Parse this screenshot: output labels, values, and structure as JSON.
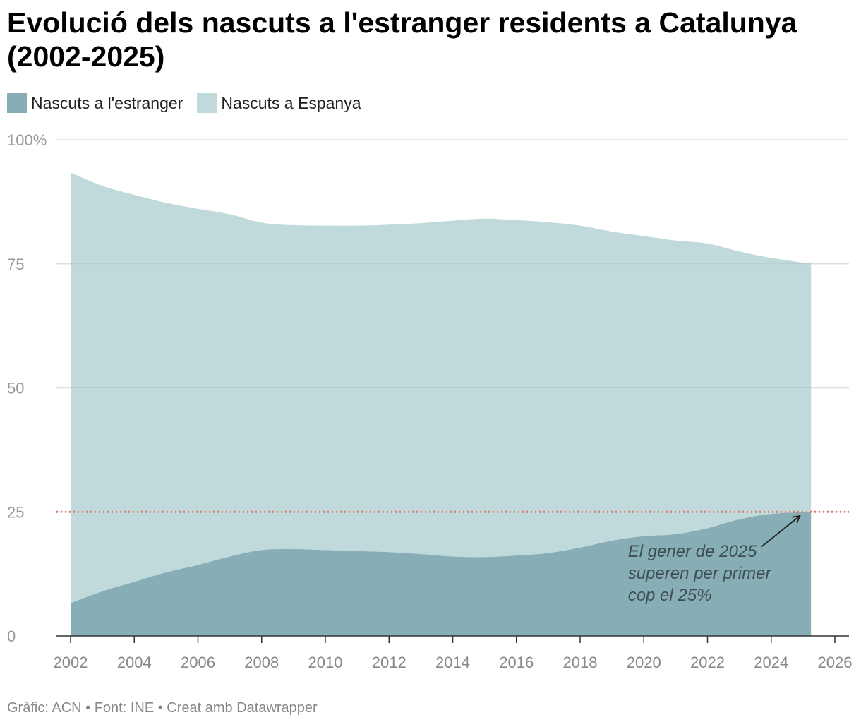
{
  "title": "Evolució dels nascuts a l'estranger residents a Catalunya (2002-2025)",
  "legend": [
    {
      "label": "Nascuts a l'estranger",
      "color": "#87aeb6"
    },
    {
      "label": "Nascuts a Espanya",
      "color": "#c0d9da"
    }
  ],
  "footer": {
    "text": "Gràfic: ACN • Font: INE • Creat amb Datawrapper"
  },
  "chart_data": {
    "type": "area",
    "stacked": true,
    "y_tick_labels": [
      "0",
      "25",
      "50",
      "75",
      "100%"
    ],
    "y_ticks": [
      0,
      25,
      50,
      75,
      100
    ],
    "ylim": [
      0,
      100
    ],
    "x_ticks": [
      2002,
      2004,
      2006,
      2008,
      2010,
      2012,
      2014,
      2016,
      2018,
      2020,
      2022,
      2024,
      2026
    ],
    "xlim": [
      2002,
      2026
    ],
    "grid": true,
    "legend_position": "top-left",
    "x": [
      2002,
      2003,
      2004,
      2005,
      2006,
      2007,
      2008,
      2009,
      2010,
      2011,
      2012,
      2013,
      2014,
      2015,
      2016,
      2017,
      2018,
      2019,
      2020,
      2021,
      2022,
      2023,
      2024,
      2025.25
    ],
    "series": [
      {
        "name": "Nascuts a l'estranger",
        "color": "#87aeb6",
        "values": [
          6.6,
          9.0,
          10.9,
          12.8,
          14.3,
          16.0,
          17.3,
          17.5,
          17.3,
          17.1,
          16.9,
          16.5,
          16.0,
          15.9,
          16.2,
          16.7,
          17.8,
          19.2,
          20.1,
          20.5,
          21.7,
          23.5,
          24.6,
          25.0
        ]
      },
      {
        "name": "Nascuts a Espanya",
        "color": "#c0d9da",
        "values": [
          86.8,
          81.7,
          78.0,
          74.5,
          71.8,
          69.0,
          66.0,
          65.3,
          65.4,
          65.6,
          66.0,
          66.7,
          67.7,
          68.2,
          67.6,
          66.7,
          64.9,
          62.3,
          60.5,
          59.2,
          57.4,
          54.0,
          51.6,
          50.0
        ]
      }
    ],
    "reference_line": {
      "y": 25,
      "color": "#e07b70",
      "style": "dotted"
    },
    "annotation": {
      "lines": [
        "El gener de 2025",
        "superen per primer",
        "cop el 25%"
      ],
      "x": 2019.5,
      "y": 15.9,
      "arrow_from": [
        2023.7,
        18
      ],
      "arrow_to": [
        2024.9,
        24.2
      ]
    }
  }
}
